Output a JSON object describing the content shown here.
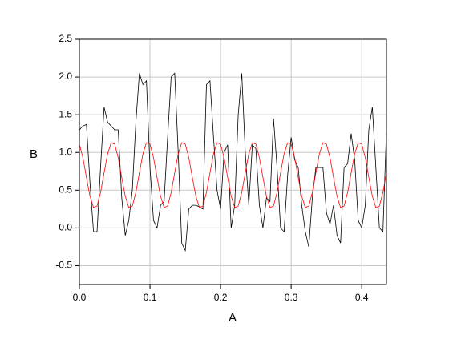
{
  "chart_data": {
    "type": "line",
    "x_label": "A",
    "y_label": "B",
    "x": [
      0,
      0.005,
      0.01,
      0.015,
      0.02,
      0.025,
      0.03,
      0.035,
      0.04,
      0.045,
      0.05,
      0.055,
      0.06,
      0.065,
      0.07,
      0.075,
      0.08,
      0.085,
      0.09,
      0.095,
      0.1,
      0.105,
      0.11,
      0.115,
      0.12,
      0.125,
      0.13,
      0.135,
      0.14,
      0.145,
      0.15,
      0.155,
      0.16,
      0.165,
      0.17,
      0.175,
      0.18,
      0.185,
      0.19,
      0.195,
      0.2,
      0.205,
      0.21,
      0.215,
      0.22,
      0.225,
      0.23,
      0.235,
      0.24,
      0.245,
      0.25,
      0.255,
      0.26,
      0.265,
      0.27,
      0.275,
      0.28,
      0.285,
      0.29,
      0.295,
      0.3,
      0.305,
      0.31,
      0.315,
      0.32,
      0.325,
      0.33,
      0.335,
      0.34,
      0.345,
      0.35,
      0.355,
      0.36,
      0.365,
      0.37,
      0.375,
      0.38,
      0.385,
      0.39,
      0.395,
      0.4,
      0.405,
      0.41,
      0.415,
      0.42,
      0.425,
      0.43,
      0.435
    ],
    "series": [
      {
        "name": "black",
        "color": "#000000",
        "values": [
          1.3,
          1.35,
          1.37,
          0.6,
          -0.05,
          -0.05,
          0.8,
          1.6,
          1.4,
          1.35,
          1.3,
          1.3,
          0.4,
          -0.1,
          0.1,
          0.5,
          1.4,
          2.05,
          1.9,
          1.95,
          0.8,
          0.1,
          0.0,
          0.3,
          0.35,
          1.2,
          2.0,
          2.05,
          1.0,
          -0.2,
          -0.3,
          0.25,
          0.3,
          0.3,
          0.28,
          0.25,
          1.9,
          1.95,
          1.2,
          0.5,
          0.25,
          1.0,
          1.1,
          0.0,
          0.3,
          1.5,
          2.05,
          1.0,
          0.3,
          1.1,
          1.05,
          0.3,
          0.0,
          0.4,
          0.35,
          1.45,
          0.8,
          0.0,
          -0.05,
          0.7,
          1.2,
          0.9,
          0.8,
          0.3,
          -0.05,
          -0.25,
          0.4,
          0.8,
          0.8,
          0.8,
          0.2,
          0.05,
          0.3,
          -0.1,
          -0.2,
          0.8,
          0.85,
          1.25,
          0.9,
          0.1,
          0.0,
          0.3,
          1.3,
          1.6,
          0.8,
          0.0,
          -0.05,
          1.3
        ]
      },
      {
        "name": "red",
        "color": "#ff0000",
        "values": [
          1.11,
          0.93,
          0.67,
          0.42,
          0.27,
          0.29,
          0.47,
          0.73,
          0.98,
          1.13,
          1.11,
          0.93,
          0.67,
          0.42,
          0.27,
          0.29,
          0.47,
          0.73,
          0.98,
          1.13,
          1.11,
          0.93,
          0.67,
          0.42,
          0.27,
          0.29,
          0.47,
          0.73,
          0.98,
          1.13,
          1.11,
          0.93,
          0.67,
          0.42,
          0.27,
          0.29,
          0.47,
          0.73,
          0.98,
          1.13,
          1.11,
          0.93,
          0.67,
          0.42,
          0.27,
          0.29,
          0.47,
          0.73,
          0.98,
          1.13,
          1.11,
          0.93,
          0.67,
          0.42,
          0.27,
          0.29,
          0.47,
          0.73,
          0.98,
          1.13,
          1.11,
          0.93,
          0.67,
          0.42,
          0.27,
          0.29,
          0.47,
          0.73,
          0.98,
          1.13,
          1.11,
          0.93,
          0.67,
          0.42,
          0.27,
          0.29,
          0.47,
          0.73,
          0.98,
          1.13,
          1.11,
          0.93,
          0.67,
          0.42,
          0.27,
          0.29,
          0.47,
          0.73
        ]
      }
    ],
    "xlim": [
      0,
      0.435
    ],
    "ylim": [
      -0.75,
      2.5
    ],
    "xticks": [
      {
        "value": 0,
        "label": "0.0"
      },
      0.1,
      0.2,
      0.3,
      0.4
    ],
    "yticks": [
      -0.5,
      {
        "value": 0,
        "label": "0.0"
      },
      0.5,
      {
        "value": 1,
        "label": "1.0"
      },
      1.5,
      {
        "value": 2,
        "label": "2.0"
      },
      2.5
    ],
    "grid": true
  }
}
